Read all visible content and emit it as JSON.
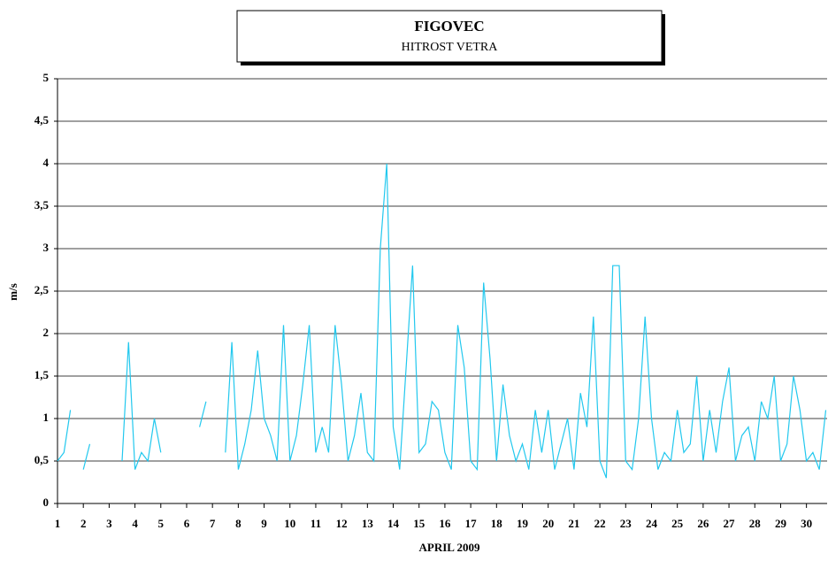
{
  "chart_data": {
    "type": "line",
    "title": "FIGOVEC",
    "subtitle": "HITROST  VETRA",
    "x_label": "APRIL 2009",
    "y_label": "m/s",
    "x": [
      1,
      1.25,
      1.5,
      1.75,
      2,
      2.25,
      2.5,
      2.75,
      3,
      3.25,
      3.5,
      3.75,
      4,
      4.25,
      4.5,
      4.75,
      5,
      5.25,
      5.5,
      5.75,
      6,
      6.25,
      6.5,
      6.75,
      7,
      7.25,
      7.5,
      7.75,
      8,
      8.25,
      8.5,
      8.75,
      9,
      9.25,
      9.5,
      9.75,
      10,
      10.25,
      10.5,
      10.75,
      11,
      11.25,
      11.5,
      11.75,
      12,
      12.25,
      12.5,
      12.75,
      13,
      13.25,
      13.5,
      13.75,
      14,
      14.25,
      14.5,
      14.75,
      15,
      15.25,
      15.5,
      15.75,
      16,
      16.25,
      16.5,
      16.75,
      17,
      17.25,
      17.5,
      17.75,
      18,
      18.25,
      18.5,
      18.75,
      19,
      19.25,
      19.5,
      19.75,
      20,
      20.25,
      20.5,
      20.75,
      21,
      21.25,
      21.5,
      21.75,
      22,
      22.25,
      22.5,
      22.75,
      23,
      23.25,
      23.5,
      23.75,
      24,
      24.25,
      24.5,
      24.75,
      25,
      25.25,
      25.5,
      25.75,
      26,
      26.25,
      26.5,
      26.75,
      27,
      27.25,
      27.5,
      27.75,
      28,
      28.25,
      28.5,
      28.75,
      29,
      29.25,
      29.5,
      29.75,
      30,
      30.25,
      30.5,
      30.75
    ],
    "series": [
      {
        "name": "m/s",
        "color": "#22c8ee",
        "values": [
          0.5,
          0.6,
          1.1,
          null,
          0.4,
          0.7,
          null,
          null,
          null,
          null,
          0.5,
          1.9,
          0.4,
          0.6,
          0.5,
          1.0,
          0.6,
          null,
          null,
          null,
          null,
          null,
          0.9,
          1.2,
          null,
          null,
          0.6,
          1.9,
          0.4,
          0.7,
          1.1,
          1.8,
          1.0,
          0.8,
          0.5,
          2.1,
          0.5,
          0.8,
          1.4,
          2.1,
          0.6,
          0.9,
          0.6,
          2.1,
          1.4,
          0.5,
          0.8,
          1.3,
          0.6,
          0.5,
          3.0,
          4.0,
          0.9,
          0.4,
          1.6,
          2.8,
          0.6,
          0.7,
          1.2,
          1.1,
          0.6,
          0.4,
          2.1,
          1.6,
          0.5,
          0.4,
          2.6,
          1.7,
          0.5,
          1.4,
          0.8,
          0.5,
          0.7,
          0.4,
          1.1,
          0.6,
          1.1,
          0.4,
          0.7,
          1.0,
          0.4,
          1.3,
          0.9,
          2.2,
          0.5,
          0.3,
          2.8,
          2.8,
          0.5,
          0.4,
          1.0,
          2.2,
          1.0,
          0.4,
          0.6,
          0.5,
          1.1,
          0.6,
          0.7,
          1.5,
          0.5,
          1.1,
          0.6,
          1.2,
          1.6,
          0.5,
          0.8,
          0.9,
          0.5,
          1.2,
          1.0,
          1.5,
          0.5,
          0.7,
          1.5,
          1.1,
          0.5,
          0.6,
          0.4,
          1.1
        ]
      }
    ],
    "xlim": [
      1,
      30.8
    ],
    "xticks": [
      1,
      2,
      3,
      4,
      5,
      6,
      7,
      8,
      9,
      10,
      11,
      12,
      13,
      14,
      15,
      16,
      17,
      18,
      19,
      20,
      21,
      22,
      23,
      24,
      25,
      26,
      27,
      28,
      29,
      30
    ],
    "ylim": [
      0,
      5
    ],
    "yticks": [
      0,
      {
        "value": 0.5,
        "label": "0,5"
      },
      1,
      {
        "value": 1.5,
        "label": "1,5"
      },
      2,
      {
        "value": 2.5,
        "label": "2,5"
      },
      3,
      {
        "value": 3.5,
        "label": "3,5"
      },
      4,
      {
        "value": 4.5,
        "label": "4,5"
      },
      5
    ],
    "grid": true
  }
}
